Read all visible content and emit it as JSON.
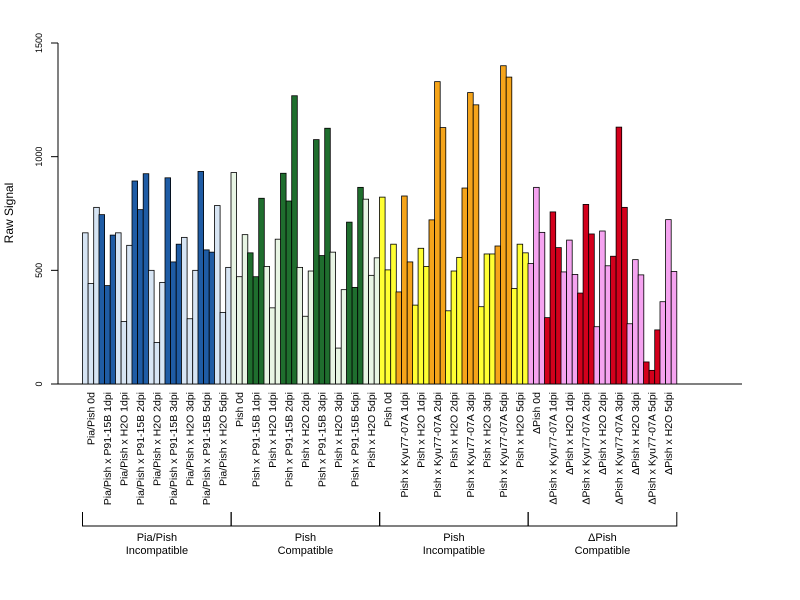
{
  "chart_data": {
    "type": "bar",
    "ylabel": "Raw Signal",
    "ylim": [
      0,
      1500
    ],
    "yticks": [
      0,
      500,
      1000,
      1500
    ],
    "grid": false,
    "categories": [
      "Pia/Pish 0d",
      "Pia/Pish x P91-15B 1dpi",
      "Pia/Pish x H2O 1dpi",
      "Pia/Pish x P91-15B 2dpi",
      "Pia/Pish x H2O 2dpi",
      "Pia/Pish x P91-15B 3dpi",
      "Pia/Pish x H2O 3dpi",
      "Pia/Pish x P91-15B 5dpi",
      "Pia/Pish x H2O 5dpi",
      "Pish 0d",
      "Pish x P91-15B 1dpi",
      "Pish x H2O 1dpi",
      "Pish x P91-15B 2dpi",
      "Pish x H2O 2dpi",
      "Pish x P91-15B 3dpi",
      "Pish x H2O 3dpi",
      "Pish x P91-15B 5dpi",
      "Pish x H2O 5dpi",
      "Pish 0d",
      "Pish x Kyu77-07A 1dpi",
      "Pish x H2O 1dpi",
      "Pish x Kyu77-07A 2dpi",
      "Pish x H2O 2dpi",
      "Pish x Kyu77-07A 3dpi",
      "Pish x H2O 3dpi",
      "Pish x Kyu77-07A 5dpi",
      "Pish x H2O 5dpi",
      "ΔPish 0d",
      "ΔPish x Kyu77-07A 1dpi",
      "ΔPish x H2O 1dpi",
      "ΔPish x Kyu77-07A 2dpi",
      "ΔPish x H2O 2dpi",
      "ΔPish x Kyu77-07A 3dpi",
      "ΔPish x H2O 3dpi",
      "ΔPish x Kyu77-07A 5dpi",
      "ΔPish x H2O 5dpi"
    ],
    "values": [
      [
        665,
        442,
        777
      ],
      [
        745,
        433,
        655
      ],
      [
        665,
        275,
        610
      ],
      [
        893,
        767,
        925
      ],
      [
        500,
        183,
        447
      ],
      [
        907,
        537,
        615
      ],
      [
        645,
        287,
        500
      ],
      [
        935,
        590,
        580
      ],
      [
        785,
        315,
        513
      ],
      [
        930,
        472,
        657
      ],
      [
        577,
        472,
        817
      ],
      [
        517,
        335,
        637
      ],
      [
        927,
        805,
        1268
      ],
      [
        513,
        298,
        497
      ],
      [
        1075,
        565,
        1125
      ],
      [
        580,
        158,
        415
      ],
      [
        712,
        425,
        865
      ],
      [
        813,
        478,
        555
      ],
      [
        822,
        502,
        615
      ],
      [
        405,
        827,
        537
      ],
      [
        347,
        597,
        517
      ],
      [
        722,
        1330,
        1128
      ],
      [
        322,
        497,
        557
      ],
      [
        862,
        1282,
        1228
      ],
      [
        340,
        572,
        572
      ],
      [
        607,
        1400,
        1350
      ],
      [
        420,
        615,
        577
      ],
      [
        530,
        865,
        667
      ],
      [
        292,
        757,
        600
      ],
      [
        493,
        633,
        482
      ],
      [
        400,
        790,
        660
      ],
      [
        252,
        673,
        520
      ],
      [
        562,
        1130,
        777
      ],
      [
        265,
        547,
        480
      ],
      [
        97,
        60,
        238
      ],
      [
        362,
        723,
        495
      ]
    ],
    "group_colors": [
      "#d7e5f4",
      "#1f5ca5",
      "#d7e5f4",
      "#1f5ca5",
      "#d7e5f4",
      "#1f5ca5",
      "#d7e5f4",
      "#1f5ca5",
      "#d7e5f4",
      "#e8f5e4",
      "#1f6e2e",
      "#e8f5e4",
      "#1f6e2e",
      "#e8f5e4",
      "#1f6e2e",
      "#e8f5e4",
      "#1f6e2e",
      "#e8f5e4",
      "#ffff33",
      "#f5a41a",
      "#ffff33",
      "#f5a41a",
      "#ffff33",
      "#f5a41a",
      "#ffff33",
      "#f5a41a",
      "#ffff33",
      "#f5a3f0",
      "#d3001c",
      "#f5a3f0",
      "#d3001c",
      "#f5a3f0",
      "#d3001c",
      "#f5a3f0",
      "#d3001c",
      "#f5a3f0"
    ],
    "sections": [
      {
        "line1": "Pia/Pish",
        "line2": "Incompatible",
        "from": 0,
        "to": 8
      },
      {
        "line1": "Pish",
        "line2": "Compatible",
        "from": 9,
        "to": 17
      },
      {
        "line1": "Pish",
        "line2": "Incompatible",
        "from": 18,
        "to": 26
      },
      {
        "line1": "ΔPish",
        "line2": "Compatible",
        "from": 27,
        "to": 35
      }
    ]
  }
}
